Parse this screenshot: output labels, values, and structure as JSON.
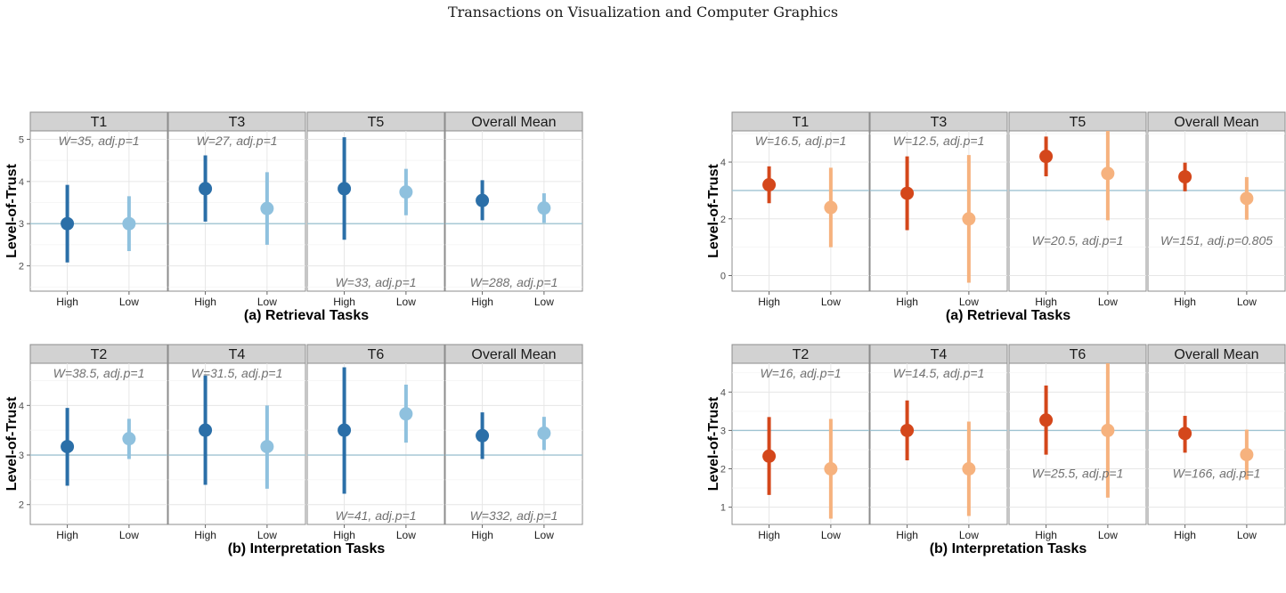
{
  "header": {
    "journal_title": "Transactions on Visualization and Computer Graphics"
  },
  "colors": {
    "blue_high": "#2b6fa8",
    "blue_low": "#8fc1de",
    "orange_high": "#d4471b",
    "orange_low": "#f6b27e"
  },
  "chart_data": [
    {
      "type": "dotplot_errorbar",
      "group": "left",
      "caption": "(a) Retrieval Tasks",
      "ylabel": "Level-of-Trust",
      "ylim": [
        1.4,
        5.2
      ],
      "yticks": [
        2,
        3,
        4,
        5
      ],
      "reference_line": 3,
      "palette": "blue",
      "categories": [
        "High",
        "Low"
      ],
      "facets": [
        {
          "title": "T1",
          "annotation": "W=35, adj.p=1",
          "annotation_pos": "top",
          "points": [
            {
              "x": "High",
              "y": 3.0,
              "lo": 2.08,
              "hi": 3.92
            },
            {
              "x": "Low",
              "y": 3.0,
              "lo": 2.35,
              "hi": 3.65
            }
          ]
        },
        {
          "title": "T3",
          "annotation": "W=27, adj.p=1",
          "annotation_pos": "top",
          "points": [
            {
              "x": "High",
              "y": 3.83,
              "lo": 3.05,
              "hi": 4.62
            },
            {
              "x": "Low",
              "y": 3.36,
              "lo": 2.5,
              "hi": 4.22
            }
          ]
        },
        {
          "title": "T5",
          "annotation": "W=33, adj.p=1",
          "annotation_pos": "bottom",
          "points": [
            {
              "x": "High",
              "y": 3.83,
              "lo": 2.62,
              "hi": 5.05
            },
            {
              "x": "Low",
              "y": 3.75,
              "lo": 3.2,
              "hi": 4.3
            }
          ]
        },
        {
          "title": "Overall Mean",
          "annotation": "W=288, adj.p=1",
          "annotation_pos": "bottom",
          "points": [
            {
              "x": "High",
              "y": 3.55,
              "lo": 3.08,
              "hi": 4.03
            },
            {
              "x": "Low",
              "y": 3.37,
              "lo": 3.02,
              "hi": 3.72
            }
          ]
        }
      ]
    },
    {
      "type": "dotplot_errorbar",
      "group": "left",
      "caption": "(b) Interpretation Tasks",
      "ylabel": "Level-of-Trust",
      "ylim": [
        1.6,
        4.85
      ],
      "yticks": [
        2,
        3,
        4
      ],
      "reference_line": 3,
      "palette": "blue",
      "categories": [
        "High",
        "Low"
      ],
      "facets": [
        {
          "title": "T2",
          "annotation": "W=38.5, adj.p=1",
          "annotation_pos": "top",
          "points": [
            {
              "x": "High",
              "y": 3.17,
              "lo": 2.38,
              "hi": 3.95
            },
            {
              "x": "Low",
              "y": 3.33,
              "lo": 2.92,
              "hi": 3.73
            }
          ]
        },
        {
          "title": "T4",
          "annotation": "W=31.5, adj.p=1",
          "annotation_pos": "top",
          "points": [
            {
              "x": "High",
              "y": 3.5,
              "lo": 2.4,
              "hi": 4.6
            },
            {
              "x": "Low",
              "y": 3.17,
              "lo": 2.32,
              "hi": 4.0
            }
          ]
        },
        {
          "title": "T6",
          "annotation": "W=41, adj.p=1",
          "annotation_pos": "bottom",
          "points": [
            {
              "x": "High",
              "y": 3.5,
              "lo": 2.22,
              "hi": 4.77
            },
            {
              "x": "Low",
              "y": 3.83,
              "lo": 3.25,
              "hi": 4.42
            }
          ]
        },
        {
          "title": "Overall Mean",
          "annotation": "W=332, adj.p=1",
          "annotation_pos": "bottom",
          "points": [
            {
              "x": "High",
              "y": 3.39,
              "lo": 2.92,
              "hi": 3.86
            },
            {
              "x": "Low",
              "y": 3.44,
              "lo": 3.1,
              "hi": 3.77
            }
          ]
        }
      ]
    },
    {
      "type": "dotplot_errorbar",
      "group": "right",
      "caption": "(a) Retrieval Tasks",
      "ylabel": "Level-of-Trust",
      "ylim": [
        -0.55,
        5.1
      ],
      "yticks": [
        0,
        2,
        4
      ],
      "reference_line": 3,
      "palette": "orange",
      "categories": [
        "High",
        "Low"
      ],
      "facets": [
        {
          "title": "T1",
          "annotation": "W=16.5, adj.p=1",
          "annotation_pos": "top",
          "points": [
            {
              "x": "High",
              "y": 3.2,
              "lo": 2.55,
              "hi": 3.85
            },
            {
              "x": "Low",
              "y": 2.4,
              "lo": 1.0,
              "hi": 3.8
            }
          ]
        },
        {
          "title": "T3",
          "annotation": "W=12.5, adj.p=1",
          "annotation_pos": "top",
          "points": [
            {
              "x": "High",
              "y": 2.9,
              "lo": 1.6,
              "hi": 4.2
            },
            {
              "x": "Low",
              "y": 2.0,
              "lo": -0.25,
              "hi": 4.25
            }
          ]
        },
        {
          "title": "T5",
          "annotation": "W=20.5, adj.p=1",
          "annotation_pos": "bottom",
          "points": [
            {
              "x": "High",
              "y": 4.2,
              "lo": 3.5,
              "hi": 4.9
            },
            {
              "x": "Low",
              "y": 3.6,
              "lo": 1.95,
              "hi": 5.25
            }
          ]
        },
        {
          "title": "Overall Mean",
          "annotation": "W=151, adj.p=0.805",
          "annotation_pos": "bottom",
          "points": [
            {
              "x": "High",
              "y": 3.48,
              "lo": 2.97,
              "hi": 3.98
            },
            {
              "x": "Low",
              "y": 2.72,
              "lo": 1.97,
              "hi": 3.47
            }
          ]
        }
      ]
    },
    {
      "type": "dotplot_errorbar",
      "group": "right",
      "caption": "(b) Interpretation Tasks",
      "ylabel": "Level-of-Trust",
      "ylim": [
        0.55,
        4.75
      ],
      "yticks": [
        1,
        2,
        3,
        4
      ],
      "reference_line": 3,
      "palette": "orange",
      "categories": [
        "High",
        "Low"
      ],
      "facets": [
        {
          "title": "T2",
          "annotation": "W=16, adj.p=1",
          "annotation_pos": "top",
          "points": [
            {
              "x": "High",
              "y": 2.33,
              "lo": 1.32,
              "hi": 3.35
            },
            {
              "x": "Low",
              "y": 2.0,
              "lo": 0.7,
              "hi": 3.3
            }
          ]
        },
        {
          "title": "T4",
          "annotation": "W=14.5, adj.p=1",
          "annotation_pos": "top",
          "points": [
            {
              "x": "High",
              "y": 3.0,
              "lo": 2.22,
              "hi": 3.78
            },
            {
              "x": "Low",
              "y": 2.0,
              "lo": 0.77,
              "hi": 3.23
            }
          ]
        },
        {
          "title": "T6",
          "annotation": "W=25.5, adj.p=1",
          "annotation_pos": "bottom",
          "points": [
            {
              "x": "High",
              "y": 3.27,
              "lo": 2.37,
              "hi": 4.17
            },
            {
              "x": "Low",
              "y": 3.0,
              "lo": 1.25,
              "hi": 4.75
            }
          ]
        },
        {
          "title": "Overall Mean",
          "annotation": "W=166, adj.p=1",
          "annotation_pos": "bottom",
          "points": [
            {
              "x": "High",
              "y": 2.92,
              "lo": 2.42,
              "hi": 3.38
            },
            {
              "x": "Low",
              "y": 2.37,
              "lo": 1.72,
              "hi": 3.02
            }
          ]
        }
      ]
    }
  ]
}
